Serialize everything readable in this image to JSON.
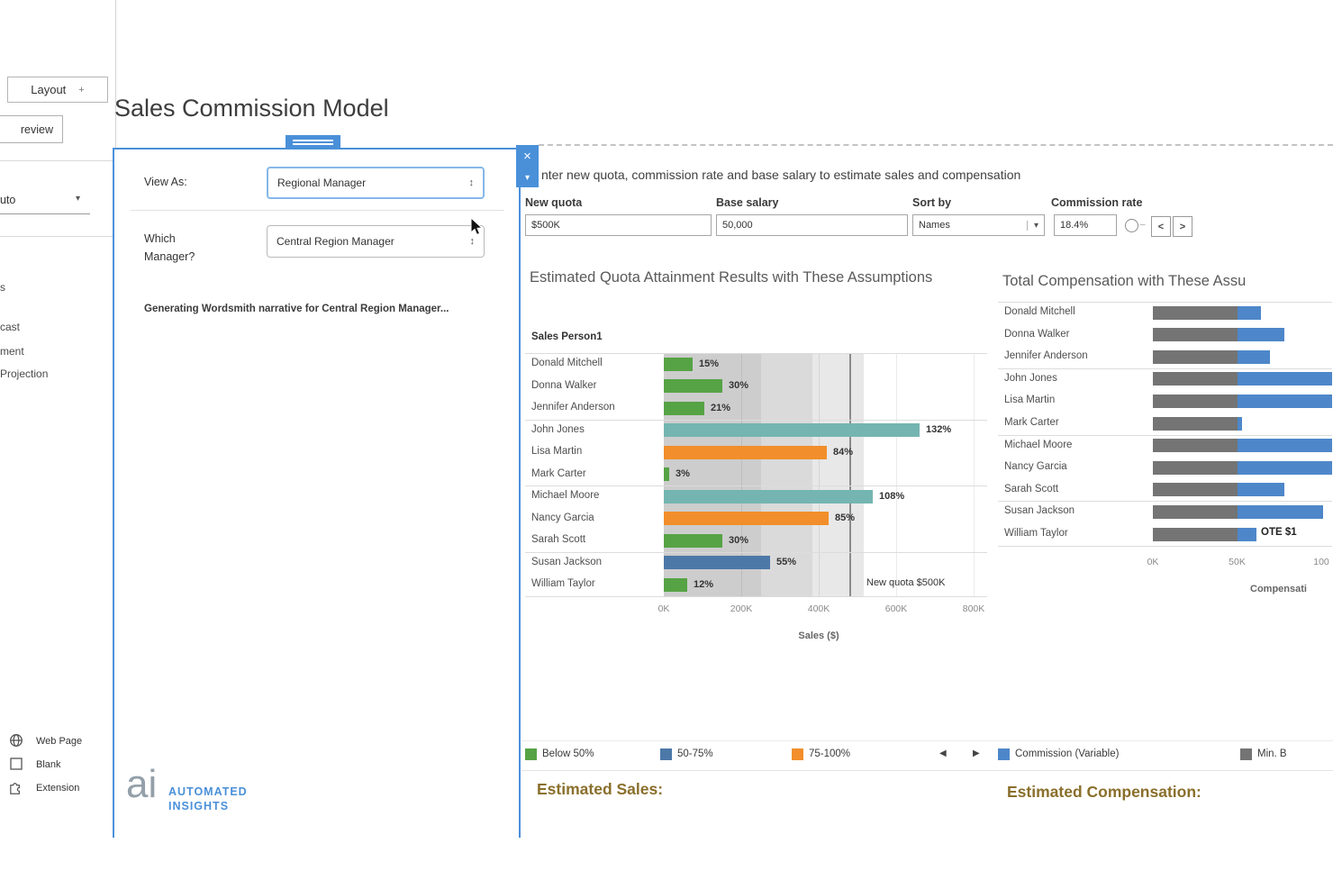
{
  "colors": {
    "below_50": "#56a345",
    "50_75": "#4c78a8",
    "75_100": "#f28e2b",
    "over_100": "#74b5b1",
    "commission": "#4e87c9",
    "min_base": "#747474",
    "panel_blue": "#4a90d9",
    "gold_heading": "#8a6f2b",
    "band_fills": [
      "#cdcdcd",
      "#dadada",
      "#e8e8e8"
    ],
    "quota_line": "#8c8c8c"
  },
  "icons": {
    "close": "×",
    "caret_down": "▾",
    "spinner": "↕",
    "prev_page": "◀",
    "next_page": "▶",
    "plus": "+",
    "step_left": "<",
    "step_right": ">",
    "slider_dash": "–"
  },
  "sidebar": {
    "layout_tab": "Layout",
    "preview_fragment": "review",
    "auto_fragment": "uto",
    "sheet_fragments": [
      "s",
      "cast",
      "ment",
      "Projection"
    ],
    "bottom_items": [
      {
        "icon": "web-page-icon",
        "label": "Web Page"
      },
      {
        "icon": "blank-icon",
        "label": "Blank"
      },
      {
        "icon": "extension-icon",
        "label": "Extension"
      }
    ]
  },
  "page_title": "Sales Commission Model",
  "panel": {
    "view_as_label": "View As:",
    "view_as_value": "Regional Manager",
    "which_label_line1": "Which",
    "which_label_line2": "Manager?",
    "which_value": "Central Region Manager",
    "status_text": "Generating Wordsmith narrative for Central Region Manager...",
    "logo_ai": "ai",
    "logo_line1": "AUTOMATED",
    "logo_line2": "INSIGHTS"
  },
  "toolbar": {
    "instruction": "nter new quota, commission rate and base salary to estimate sales and compensation",
    "new_quota_label": "New quota",
    "new_quota_value": "$500K",
    "base_salary_label": "Base salary",
    "base_salary_value": "50,000",
    "sort_by_label": "Sort by",
    "sort_by_value": "Names",
    "commission_rate_label": "Commission rate",
    "commission_rate_value": "18.4%"
  },
  "chart_data": [
    {
      "type": "bar",
      "orientation": "horizontal",
      "title": "Estimated Quota Attainment Results with These Assumptions",
      "column_header": "Sales Person1",
      "categories": [
        "Donald Mitchell",
        "Donna Walker",
        "Jennifer Anderson",
        "John Jones",
        "Lisa Martin",
        "Mark Carter",
        "Michael Moore",
        "Nancy Garcia",
        "Sarah Scott",
        "Susan Jackson",
        "William Taylor"
      ],
      "attainment_pct": [
        15,
        30,
        21,
        132,
        84,
        3,
        108,
        85,
        30,
        55,
        12
      ],
      "sales_k": [
        75,
        150,
        105,
        660,
        420,
        15,
        540,
        425,
        150,
        275,
        60
      ],
      "labels": [
        "15%",
        "30%",
        "21%",
        "132%",
        "84%",
        "3%",
        "108%",
        "85%",
        "30%",
        "55%",
        "12%"
      ],
      "band": [
        "below_50",
        "below_50",
        "below_50",
        "over_100",
        "75_100",
        "below_50",
        "over_100",
        "75_100",
        "below_50",
        "50_75",
        "below_50"
      ],
      "x_ticks": [
        "0K",
        "200K",
        "400K",
        "600K",
        "800K"
      ],
      "xlim_k": [
        0,
        800
      ],
      "xlabel": "Sales ($)",
      "reference_line": {
        "label": "New quota $500K",
        "value_k": 500
      },
      "grid": true
    },
    {
      "type": "bar",
      "subtype": "stacked",
      "orientation": "horizontal",
      "title": "Total Compensation with These Assu",
      "categories": [
        "Donald Mitchell",
        "Donna Walker",
        "Jennifer Anderson",
        "John Jones",
        "Lisa Martin",
        "Mark Carter",
        "Michael Moore",
        "Nancy Garcia",
        "Sarah Scott",
        "Susan Jackson",
        "William Taylor"
      ],
      "series": [
        {
          "name": "Min. Base",
          "color_key": "min_base",
          "values_k": [
            50,
            50,
            50,
            50,
            50,
            50,
            50,
            50,
            50,
            50,
            50
          ]
        },
        {
          "name": "Commission (Variable)",
          "color_key": "commission",
          "values_k": [
            13.8,
            27.6,
            19.3,
            121.4,
            77.3,
            2.8,
            99.4,
            78.2,
            27.6,
            50.6,
            11
          ]
        }
      ],
      "x_ticks": [
        "0K",
        "50K",
        "100"
      ],
      "xlabel": "Compensati",
      "annotation": "OTE $1"
    }
  ],
  "legend_left": [
    {
      "color_key": "below_50",
      "label": "Below 50%"
    },
    {
      "color_key": "50_75",
      "label": "50-75%"
    },
    {
      "color_key": "75_100",
      "label": "75-100%"
    }
  ],
  "legend_right": [
    {
      "color_key": "commission",
      "label": "Commission (Variable)"
    },
    {
      "color_key": "min_base",
      "label": "Min. B"
    }
  ],
  "footer": {
    "estimated_sales": "Estimated Sales:",
    "estimated_compensation": "Estimated Compensation:"
  }
}
